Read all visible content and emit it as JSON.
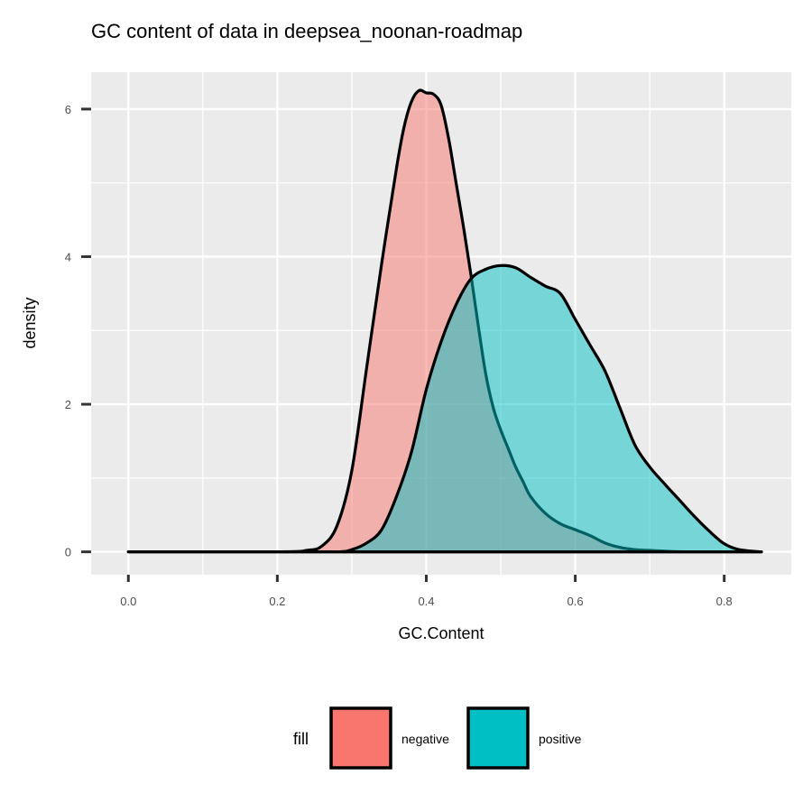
{
  "chart_data": {
    "type": "area",
    "title": "GC content of data in deepsea_noonan-roadmap",
    "xlabel": "GC.Content",
    "ylabel": "density",
    "xlim": [
      -0.05,
      0.89
    ],
    "ylim": [
      -0.31,
      6.5
    ],
    "x_ticks": [
      0.0,
      0.2,
      0.4,
      0.6,
      0.8
    ],
    "x_tick_labels": [
      "0.0",
      "0.2",
      "0.4",
      "0.6",
      "0.8"
    ],
    "y_ticks": [
      0,
      2,
      4,
      6
    ],
    "y_tick_labels": [
      "0",
      "2",
      "4",
      "6"
    ],
    "grid": true,
    "legend_position": "bottom",
    "legend": {
      "title": "fill",
      "entries": [
        {
          "label": "negative",
          "color": "#F8766D"
        },
        {
          "label": "positive",
          "color": "#00BFC4"
        }
      ]
    },
    "series": [
      {
        "name": "negative",
        "color": "#F8766D",
        "x": [
          0.0,
          0.2,
          0.24,
          0.26,
          0.28,
          0.3,
          0.32,
          0.34,
          0.36,
          0.37,
          0.38,
          0.39,
          0.4,
          0.41,
          0.42,
          0.43,
          0.44,
          0.45,
          0.46,
          0.47,
          0.48,
          0.49,
          0.5,
          0.51,
          0.52,
          0.53,
          0.54,
          0.56,
          0.58,
          0.6,
          0.62,
          0.64,
          0.66,
          0.68,
          0.7,
          0.72,
          0.75,
          0.8,
          0.85
        ],
        "y": [
          0.0,
          0.0,
          0.02,
          0.08,
          0.35,
          1.1,
          2.5,
          3.9,
          5.2,
          5.75,
          6.1,
          6.25,
          6.22,
          6.2,
          6.05,
          5.6,
          5.0,
          4.4,
          3.75,
          3.05,
          2.4,
          1.95,
          1.65,
          1.4,
          1.15,
          0.95,
          0.75,
          0.52,
          0.38,
          0.3,
          0.22,
          0.12,
          0.06,
          0.03,
          0.02,
          0.01,
          0.0,
          0.0,
          0.0
        ]
      },
      {
        "name": "positive",
        "color": "#00BFC4",
        "x": [
          0.0,
          0.2,
          0.28,
          0.3,
          0.32,
          0.34,
          0.36,
          0.38,
          0.4,
          0.42,
          0.44,
          0.46,
          0.48,
          0.5,
          0.52,
          0.54,
          0.56,
          0.58,
          0.6,
          0.62,
          0.64,
          0.66,
          0.68,
          0.7,
          0.72,
          0.74,
          0.76,
          0.78,
          0.8,
          0.82,
          0.85
        ],
        "y": [
          0.0,
          0.0,
          0.0,
          0.03,
          0.12,
          0.3,
          0.75,
          1.35,
          2.2,
          2.85,
          3.35,
          3.7,
          3.83,
          3.88,
          3.85,
          3.72,
          3.6,
          3.5,
          3.15,
          2.8,
          2.45,
          1.95,
          1.45,
          1.15,
          0.92,
          0.7,
          0.48,
          0.28,
          0.11,
          0.03,
          0.0
        ]
      }
    ]
  }
}
